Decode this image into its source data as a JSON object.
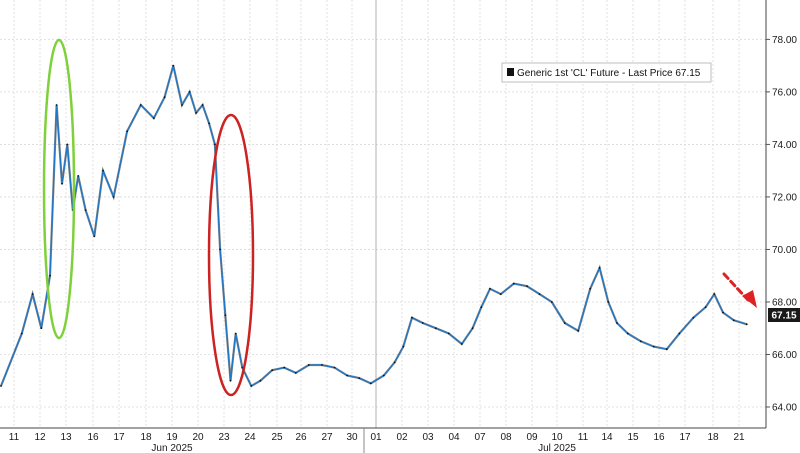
{
  "chart_data": {
    "type": "line",
    "title": "",
    "xlabel": "",
    "ylabel": "",
    "ylim": [
      63.2,
      79.5
    ],
    "y_ticks": [
      "64.00",
      "66.00",
      "68.00",
      "70.00",
      "72.00",
      "74.00",
      "76.00",
      "78.00"
    ],
    "x_ticks": [
      "11",
      "12",
      "13",
      "16",
      "17",
      "18",
      "19",
      "20",
      "23",
      "24",
      "25",
      "26",
      "27",
      "30",
      "01",
      "02",
      "03",
      "04",
      "07",
      "08",
      "09",
      "10",
      "11",
      "14",
      "15",
      "16",
      "17",
      "18",
      "21"
    ],
    "month_labels": [
      "Jun 2025",
      "Jul 2025"
    ],
    "grid": true,
    "legend": {
      "position": "top-right",
      "entries": [
        "Generic 1st 'CL' Future - Last Price 67.15"
      ]
    },
    "last_price": "67.15",
    "series": [
      {
        "name": "Generic 1st 'CL' Future - Last Price 67.15",
        "color": "#1f77c8",
        "x": [
          "11",
          "11",
          "12",
          "12",
          "12",
          "13",
          "13",
          "13",
          "13",
          "13",
          "16",
          "16",
          "16",
          "17",
          "17",
          "18",
          "18",
          "19",
          "19",
          "19",
          "20",
          "20",
          "20",
          "20",
          "23",
          "23",
          "23",
          "23",
          "23",
          "24",
          "24",
          "24",
          "25",
          "25",
          "26",
          "26",
          "27",
          "27",
          "30",
          "30",
          "01",
          "01",
          "02",
          "02",
          "02",
          "03",
          "03",
          "04",
          "04",
          "07",
          "07",
          "07",
          "08",
          "08",
          "09",
          "09",
          "10",
          "10",
          "11",
          "11",
          "14",
          "14",
          "14",
          "15",
          "15",
          "16",
          "16",
          "17",
          "17",
          "18",
          "18",
          "18",
          "21",
          "21"
        ],
        "values": [
          64.8,
          66.8,
          68.3,
          67.0,
          69.0,
          75.5,
          72.5,
          74.0,
          71.5,
          72.8,
          71.5,
          70.5,
          73.0,
          72.0,
          74.5,
          75.5,
          75.0,
          75.8,
          77.0,
          75.5,
          76.0,
          75.2,
          75.5,
          74.8,
          74.0,
          70.0,
          67.5,
          65.0,
          66.8,
          65.5,
          64.8,
          65.0,
          65.4,
          65.5,
          65.3,
          65.6,
          65.6,
          65.5,
          65.2,
          65.1,
          64.9,
          65.2,
          65.7,
          66.3,
          67.4,
          67.2,
          67.0,
          66.8,
          66.4,
          67.0,
          67.8,
          68.5,
          68.3,
          68.7,
          68.6,
          68.3,
          68.0,
          67.2,
          66.9,
          68.5,
          69.3,
          68.0,
          67.2,
          66.8,
          66.5,
          66.3,
          66.2,
          66.8,
          67.4,
          67.8,
          68.3,
          67.6,
          67.3,
          67.15
        ]
      }
    ],
    "annotations": [
      {
        "type": "ellipse",
        "color": "#7fd13b",
        "label": ""
      },
      {
        "type": "ellipse",
        "color": "#cc2222",
        "label": ""
      },
      {
        "type": "arrow",
        "color": "#dd2222",
        "label": "",
        "style": "dashed"
      }
    ]
  }
}
